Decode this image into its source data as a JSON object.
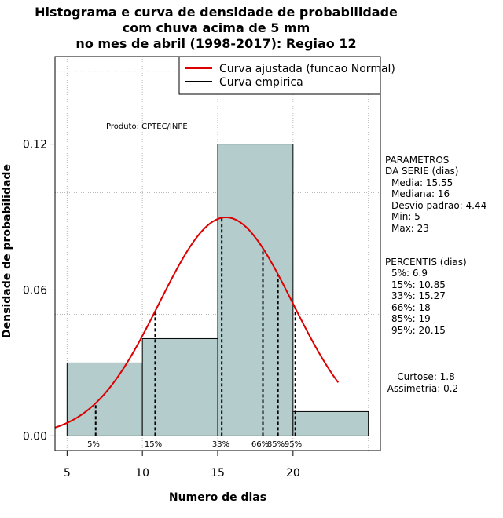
{
  "chart_data": {
    "type": "bar",
    "title_lines": [
      "Histograma e curva de densidade de probabilidade",
      "com chuva acima de 5 mm",
      "no mes de abril (1998-2017): Regiao 12"
    ],
    "xlabel": "Numero de dias",
    "ylabel": "Densidade de probabilidade",
    "xlim": [
      4.2,
      25.8
    ],
    "ylim": [
      -0.006,
      0.156
    ],
    "x_ticks": [
      5,
      10,
      15,
      20
    ],
    "y_ticks": [
      0.0,
      0.06,
      0.12
    ],
    "y_tick_labels": [
      "0.00",
      "0.06",
      "0.12"
    ],
    "grid": true,
    "bins": [
      {
        "start": 5,
        "end": 10,
        "density": 0.03
      },
      {
        "start": 10,
        "end": 15,
        "density": 0.04
      },
      {
        "start": 15,
        "end": 20,
        "density": 0.12
      },
      {
        "start": 20,
        "end": 25,
        "density": 0.01
      }
    ],
    "bar_color": "#b5cccc",
    "normal_curve": {
      "mean": 15.55,
      "sd": 4.44,
      "x_from": 4.2,
      "x_to": 23,
      "color": "#dd0000"
    },
    "percentiles": [
      {
        "label": "5%",
        "x": 6.9
      },
      {
        "label": "15%",
        "x": 10.85
      },
      {
        "label": "33%",
        "x": 15.27
      },
      {
        "label": "66%",
        "x": 18
      },
      {
        "label": "85%",
        "x": 19
      },
      {
        "label": "95%",
        "x": 20.15
      }
    ],
    "legend": {
      "position": "top-right",
      "entries": [
        {
          "name": "Curva ajustada (funcao Normal)",
          "color": "#dd0000"
        },
        {
          "name": "Curva empirica",
          "color": "#000000"
        }
      ]
    },
    "annotation": "Produto: CPTEC/INPE"
  },
  "side_panel": {
    "parametros_title": [
      "PARAMETROS",
      "DA SERIE (dias)"
    ],
    "parametros": [
      "Media: 15.55",
      "Mediana: 16",
      "Desvio padrao: 4.44",
      "Min: 5",
      "Max: 23"
    ],
    "percentis_title": "PERCENTIS (dias)",
    "percentis": [
      "5%: 6.9",
      "15%: 10.85",
      "33%: 15.27",
      "66%: 18",
      "85%: 19",
      "95%: 20.15"
    ],
    "curtose": "Curtose: 1.8",
    "assimetria": "Assimetria: 0.2"
  }
}
